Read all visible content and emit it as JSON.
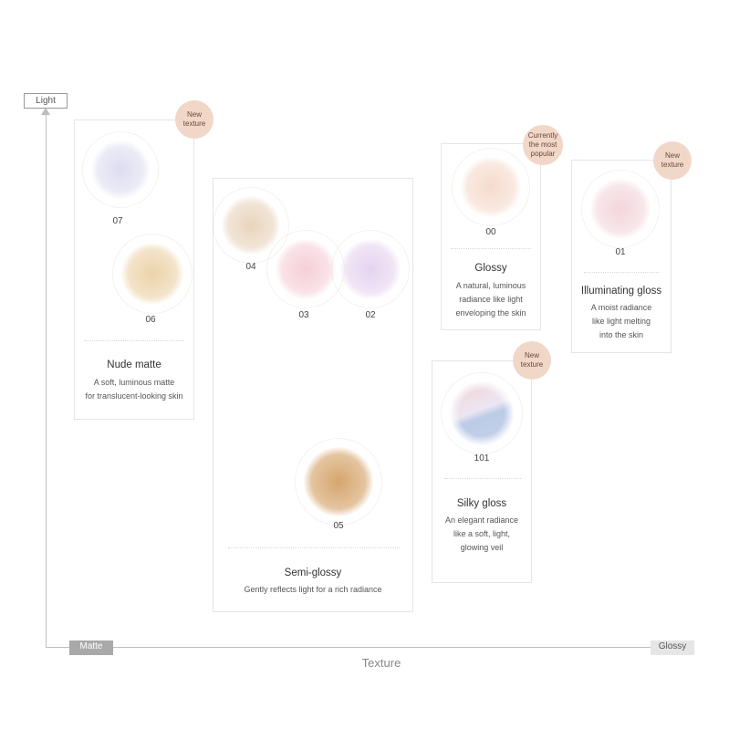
{
  "axes": {
    "y_label": "Light",
    "x_left": "Matte",
    "x_right": "Glossy",
    "x_title": "Texture"
  },
  "groups": {
    "nude_matte": {
      "name": "Nude matte",
      "desc_line1": "A soft, luminous matte",
      "desc_line2": "for translucent-looking skin",
      "badge": "New texture"
    },
    "semi_glossy": {
      "name": "Semi-glossy",
      "desc_line1": "Gently reflects light for a rich radiance"
    },
    "glossy": {
      "name": "Glossy",
      "desc_line1": "A natural, luminous",
      "desc_line2": "radiance like light",
      "desc_line3": "enveloping the skin",
      "badge_line1": "Currently",
      "badge_line2": "the most",
      "badge_line3": "popular"
    },
    "illuminating_gloss": {
      "name": "Illuminating gloss",
      "desc_line1": "A moist radiance",
      "desc_line2": "like light melting",
      "desc_line3": "into the skin",
      "badge": "New texture"
    },
    "silky_gloss": {
      "name": "Silky gloss",
      "desc_line1": "An elegant radiance",
      "desc_line2": "like a soft, light,",
      "desc_line3": "glowing veil",
      "badge": "New texture"
    }
  },
  "shades": {
    "s07": {
      "code": "07",
      "color": "#dcdcf0"
    },
    "s06": {
      "code": "06",
      "color": "#ecd2a8"
    },
    "s04": {
      "code": "04",
      "color": "#e9d4bd"
    },
    "s03": {
      "code": "03",
      "color": "#f6cfd8"
    },
    "s02": {
      "code": "02",
      "color": "#e6d3ef"
    },
    "s05": {
      "code": "05",
      "color": "#d6a56d"
    },
    "s00": {
      "code": "00",
      "color": "#f5dbcc"
    },
    "s01": {
      "code": "01",
      "color": "#f3d6dc"
    },
    "s101": {
      "code": "101",
      "color_top": "#f3d2d6",
      "color_bottom": "#bccbe6"
    }
  }
}
